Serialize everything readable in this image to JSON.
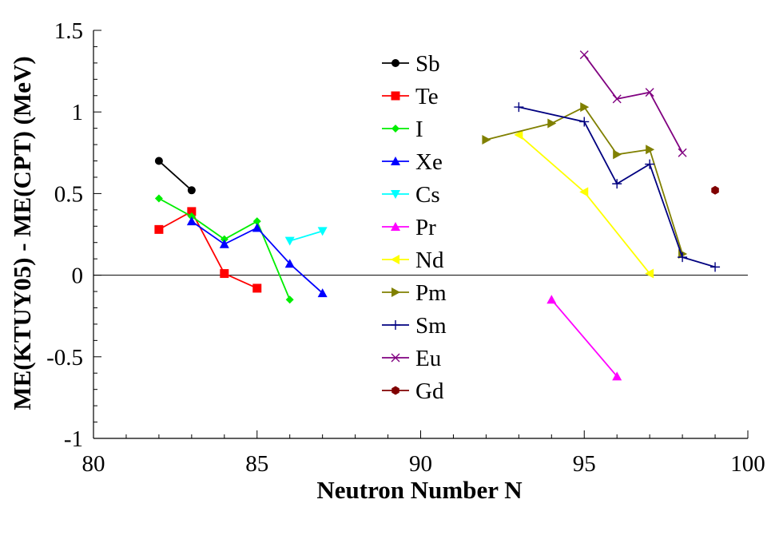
{
  "chart_data": {
    "type": "line",
    "title": "",
    "xlabel": "Neutron Number N",
    "ylabel": "ME(KTUY05) - ME(CPT) (MeV)",
    "xlim": [
      80,
      100
    ],
    "ylim": [
      -1,
      1.5
    ],
    "xticks": [
      80,
      85,
      90,
      95,
      100
    ],
    "xtick_labels": [
      "80",
      "85",
      "90",
      "95",
      "100"
    ],
    "yticks": [
      -1,
      -0.5,
      0,
      0.5,
      1,
      1.5
    ],
    "ytick_labels": [
      "-1",
      "-0.5",
      "0",
      "0.5",
      "1",
      "1.5"
    ],
    "grid": false,
    "zero_line": true,
    "legend_position": "top-center",
    "series": [
      {
        "name": "Sb",
        "color": "#000000",
        "marker": "circle",
        "x": [
          82,
          83
        ],
        "y": [
          0.7,
          0.52
        ]
      },
      {
        "name": "Te",
        "color": "#ff0000",
        "marker": "square",
        "x": [
          82,
          83,
          84,
          85
        ],
        "y": [
          0.28,
          0.39,
          0.01,
          -0.08
        ]
      },
      {
        "name": "I",
        "color": "#00ee00",
        "marker": "diamond",
        "x": [
          82,
          83,
          84,
          85,
          86
        ],
        "y": [
          0.47,
          0.36,
          0.22,
          0.33,
          -0.15
        ]
      },
      {
        "name": "Xe",
        "color": "#0000ff",
        "marker": "triangle-up",
        "x": [
          83,
          84,
          85,
          86,
          87
        ],
        "y": [
          0.33,
          0.19,
          0.29,
          0.07,
          -0.11
        ]
      },
      {
        "name": "Cs",
        "color": "#00ffff",
        "marker": "triangle-down",
        "x": [
          86,
          87
        ],
        "y": [
          0.21,
          0.27
        ]
      },
      {
        "name": "Pr",
        "color": "#ff00ff",
        "marker": "triangle-up",
        "x": [
          94,
          96
        ],
        "y": [
          -0.15,
          -0.62
        ]
      },
      {
        "name": "Nd",
        "color": "#ffff00",
        "marker": "triangle-left",
        "x": [
          93,
          95,
          97
        ],
        "y": [
          0.86,
          0.51,
          0.01
        ]
      },
      {
        "name": "Pm",
        "color": "#808000",
        "marker": "triangle-right",
        "x": [
          92,
          94,
          95,
          96,
          97,
          98
        ],
        "y": [
          0.83,
          0.93,
          1.03,
          0.74,
          0.77,
          0.13
        ]
      },
      {
        "name": "Sm",
        "color": "#000080",
        "marker": "plus",
        "x": [
          93,
          95,
          96,
          97,
          98,
          99
        ],
        "y": [
          1.03,
          0.94,
          0.56,
          0.68,
          0.11,
          0.05
        ]
      },
      {
        "name": "Eu",
        "color": "#800080",
        "marker": "cross",
        "x": [
          95,
          96,
          97,
          98
        ],
        "y": [
          1.35,
          1.08,
          1.12,
          0.75
        ]
      },
      {
        "name": "Gd",
        "color": "#800000",
        "marker": "hexagon",
        "x": [
          99
        ],
        "y": [
          0.52
        ]
      }
    ]
  }
}
